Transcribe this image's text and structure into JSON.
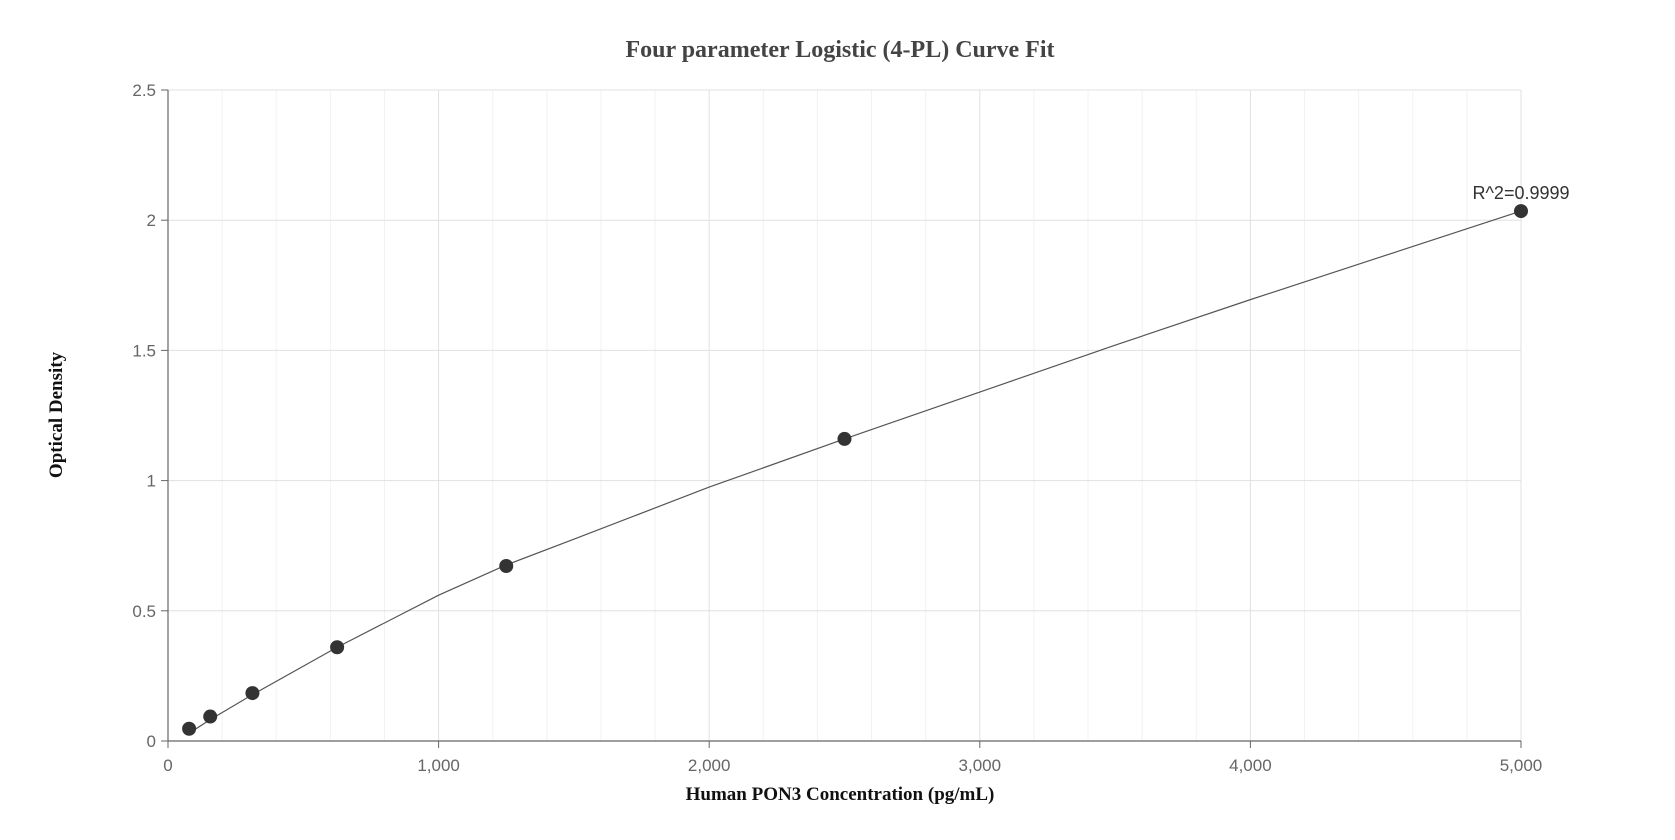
{
  "chart_data": {
    "type": "scatter",
    "title": "Four parameter Logistic (4-PL) Curve Fit",
    "xlabel": "Human PON3 Concentration (pg/mL)",
    "ylabel": "Optical Density",
    "xlim": [
      0,
      5000
    ],
    "ylim": [
      0,
      2.5
    ],
    "x_ticks": [
      0,
      1000,
      2000,
      3000,
      4000,
      5000
    ],
    "x_tick_labels": [
      "0",
      "1,000",
      "2,000",
      "3,000",
      "4,000",
      "5,000"
    ],
    "y_ticks": [
      0,
      0.5,
      1,
      1.5,
      2,
      2.5
    ],
    "y_tick_labels": [
      "0",
      "0.5",
      "1",
      "1.5",
      "2",
      "2.5"
    ],
    "grid": true,
    "series": [
      {
        "points": [
          {
            "x": 78,
            "y": 0.047
          },
          {
            "x": 156,
            "y": 0.094
          },
          {
            "x": 312,
            "y": 0.184
          },
          {
            "x": 625,
            "y": 0.36
          },
          {
            "x": 1250,
            "y": 0.672
          },
          {
            "x": 2500,
            "y": 1.16
          },
          {
            "x": 5000,
            "y": 2.035
          }
        ]
      }
    ],
    "fit_curve": {
      "type": "4PL",
      "points": [
        {
          "x": 78,
          "y": 0.03
        },
        {
          "x": 156,
          "y": 0.082
        },
        {
          "x": 312,
          "y": 0.178
        },
        {
          "x": 625,
          "y": 0.36
        },
        {
          "x": 1000,
          "y": 0.56
        },
        {
          "x": 1250,
          "y": 0.676
        },
        {
          "x": 1500,
          "y": 0.775
        },
        {
          "x": 2000,
          "y": 0.975
        },
        {
          "x": 2500,
          "y": 1.16
        },
        {
          "x": 3000,
          "y": 1.34
        },
        {
          "x": 3500,
          "y": 1.52
        },
        {
          "x": 4000,
          "y": 1.695
        },
        {
          "x": 4500,
          "y": 1.865
        },
        {
          "x": 5000,
          "y": 2.035
        }
      ]
    },
    "annotation": {
      "text": "R^2=0.9999",
      "x": 5000,
      "y": 2.035
    }
  },
  "colors": {
    "marker": "#333333",
    "curve": "#555555",
    "grid_major": "#dde1e6",
    "grid_minor": "#f0f2f4",
    "axis": "#666666"
  }
}
